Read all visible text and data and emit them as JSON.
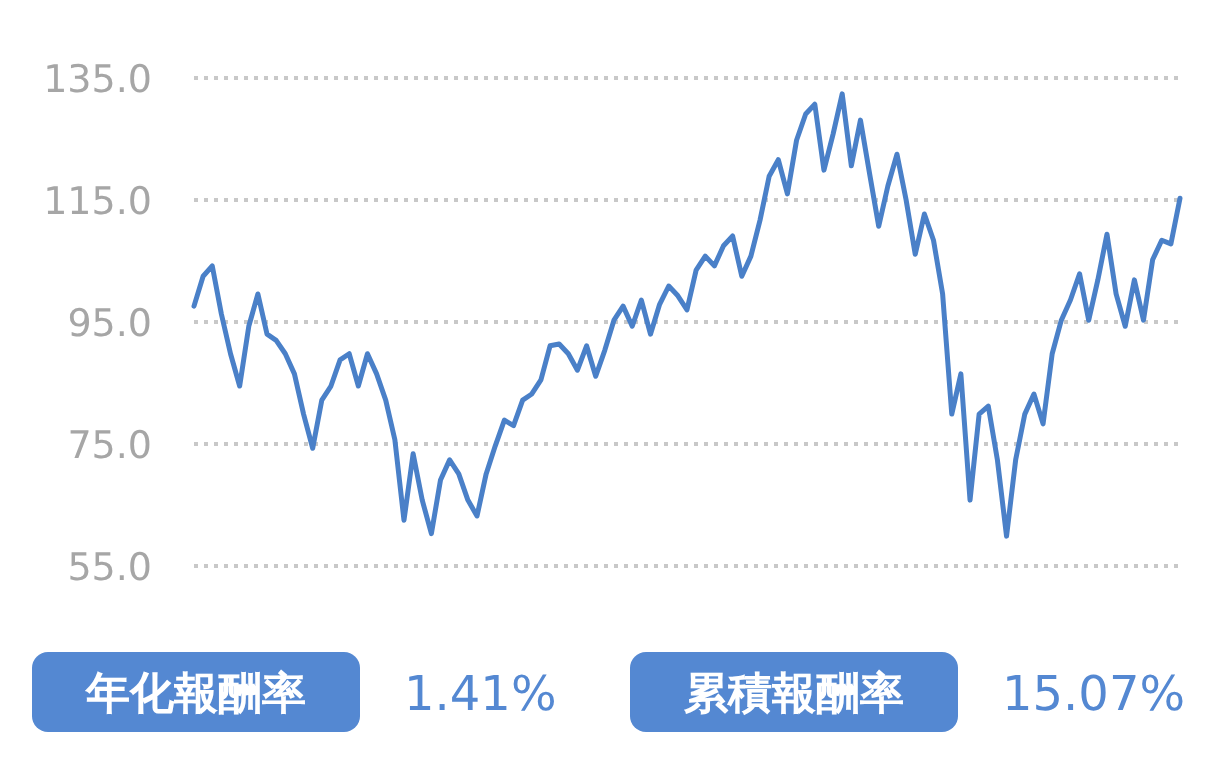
{
  "chart_data": {
    "type": "line",
    "color": "#4a80c8",
    "line_style": "solid",
    "grid": "y",
    "ylim": [
      55,
      135
    ],
    "yticks": [
      {
        "value": 55,
        "label": "55.0"
      },
      {
        "value": 75,
        "label": "75.0"
      },
      {
        "value": 95,
        "label": "95.0"
      },
      {
        "value": 115,
        "label": "115.0"
      },
      {
        "value": 135,
        "label": "135.0"
      }
    ],
    "categories": [
      null,
      null,
      null,
      null,
      null,
      null,
      null,
      null,
      null,
      null,
      null,
      null,
      null,
      null,
      null,
      null,
      null,
      null,
      null,
      null,
      null,
      null,
      null,
      null,
      null,
      null,
      null,
      null,
      null,
      null,
      null,
      null,
      null,
      null,
      null,
      null,
      null,
      null,
      null,
      null,
      null,
      null,
      null,
      null,
      null,
      null,
      null,
      null,
      null,
      null,
      null,
      null,
      null,
      null,
      null,
      null,
      null,
      null,
      null,
      null,
      null,
      null,
      null,
      null,
      null,
      null,
      null,
      null,
      null,
      null,
      null,
      null,
      null,
      null,
      null,
      null,
      null,
      null,
      null,
      null,
      null,
      null,
      null,
      null,
      null,
      null,
      null,
      null,
      null,
      null,
      null,
      null,
      null,
      null,
      null,
      null,
      null,
      null,
      null,
      null,
      null,
      null,
      null,
      null,
      null,
      null,
      null,
      null,
      null
    ],
    "values": [
      97.6,
      102.5,
      104.2,
      96.3,
      89.8,
      84.5,
      94.3,
      99.6,
      93.0,
      92.0,
      89.8,
      86.5,
      79.9,
      74.3,
      82.2,
      84.5,
      88.8,
      89.8,
      84.5,
      89.8,
      86.5,
      82.2,
      75.7,
      62.5,
      73.4,
      65.8,
      60.3,
      69.1,
      72.4,
      70.1,
      65.8,
      63.2,
      70.1,
      74.7,
      78.9,
      78.0,
      82.2,
      83.2,
      85.5,
      91.1,
      91.4,
      89.8,
      87.1,
      91.1,
      86.1,
      90.4,
      95.3,
      97.6,
      94.3,
      98.6,
      93.0,
      97.9,
      100.9,
      99.3,
      97.0,
      103.5,
      105.8,
      104.2,
      107.5,
      109.1,
      102.5,
      105.8,
      111.7,
      118.9,
      121.6,
      116.0,
      124.8,
      129.1,
      130.7,
      119.9,
      125.8,
      132.4,
      120.6,
      128.1,
      119.3,
      110.7,
      117.3,
      122.5,
      115.0,
      106.1,
      112.7,
      108.4,
      99.6,
      79.9,
      86.5,
      65.8,
      79.9,
      81.2,
      72.4,
      59.9,
      72.4,
      79.9,
      83.2,
      78.3,
      89.8,
      95.3,
      98.6,
      102.9,
      95.3,
      101.9,
      109.4,
      99.6,
      94.3,
      101.9,
      95.3,
      105.2,
      108.4,
      107.8,
      115.3
    ],
    "annotations": [
      "年化報酬率",
      "1.41%",
      "累積報酬率",
      "15.07%"
    ]
  }
}
